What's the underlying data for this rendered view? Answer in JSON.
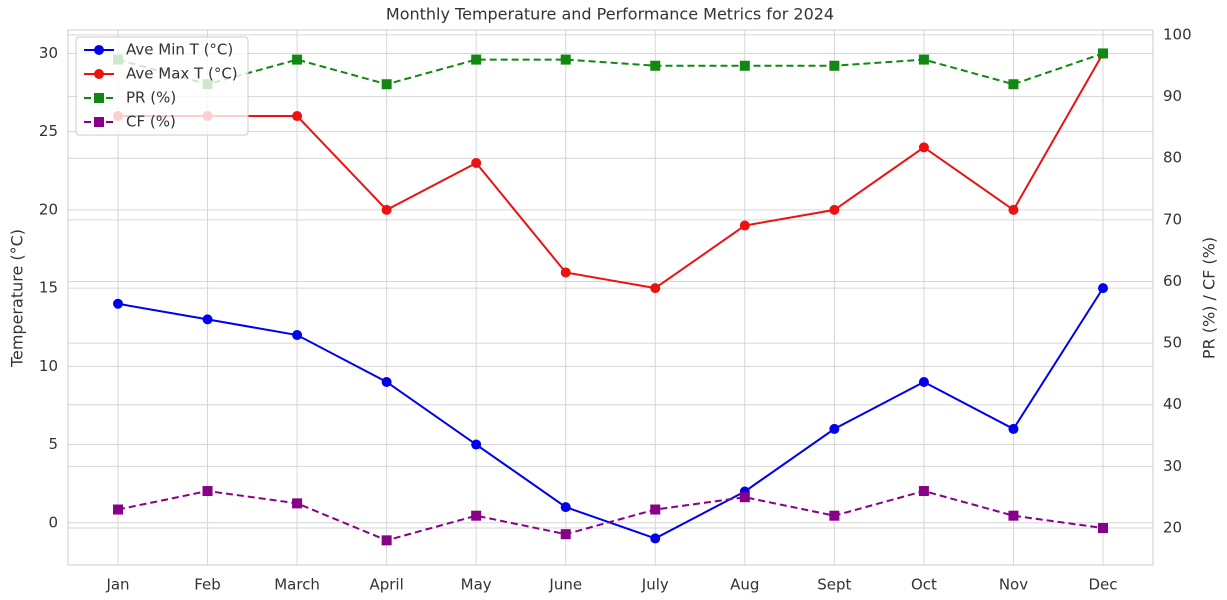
{
  "chart_data": {
    "type": "line",
    "title": "Monthly Temperature and Performance Metrics for 2024",
    "ylabel": "Temperature (°C)",
    "y2label": "PR (%) / CF (%)",
    "categories": [
      "Jan",
      "Feb",
      "March",
      "April",
      "May",
      "June",
      "July",
      "Aug",
      "Sept",
      "Oct",
      "Nov",
      "Dec"
    ],
    "series": [
      {
        "name": "Ave Min T (°C)",
        "color": "#0000ee",
        "marker": "o",
        "linestyle": "-",
        "values": [
          14,
          13,
          12,
          9,
          5,
          1,
          -1,
          2,
          6,
          9,
          6,
          15
        ]
      },
      {
        "name": "Ave Max T (°C)",
        "color": "#ee1111",
        "marker": "o",
        "linestyle": "-",
        "values": [
          26,
          26,
          26,
          20,
          23,
          16,
          15,
          19,
          20,
          24,
          20,
          30
        ]
      },
      {
        "name": "PR (%)",
        "color": "#118811",
        "marker": "s",
        "linestyle": "--",
        "axis": "y2",
        "values": [
          96,
          92,
          96,
          92,
          96,
          96,
          95,
          95,
          95,
          96,
          92,
          97
        ]
      },
      {
        "name": "CF (%)",
        "color": "#880088",
        "marker": "s",
        "linestyle": "--",
        "axis": "y2",
        "values": [
          23,
          26,
          24,
          18,
          22,
          19,
          23,
          25,
          22,
          26,
          22,
          20
        ]
      }
    ],
    "ylim": [
      -2.7,
      31.5
    ],
    "yticks": [
      0,
      5,
      10,
      15,
      20,
      25,
      30
    ],
    "y2lim": [
      14,
      100.8
    ],
    "y2ticks": [
      20,
      30,
      40,
      50,
      60,
      70,
      80,
      90,
      100
    ],
    "grid": true,
    "legend": "upper left"
  }
}
